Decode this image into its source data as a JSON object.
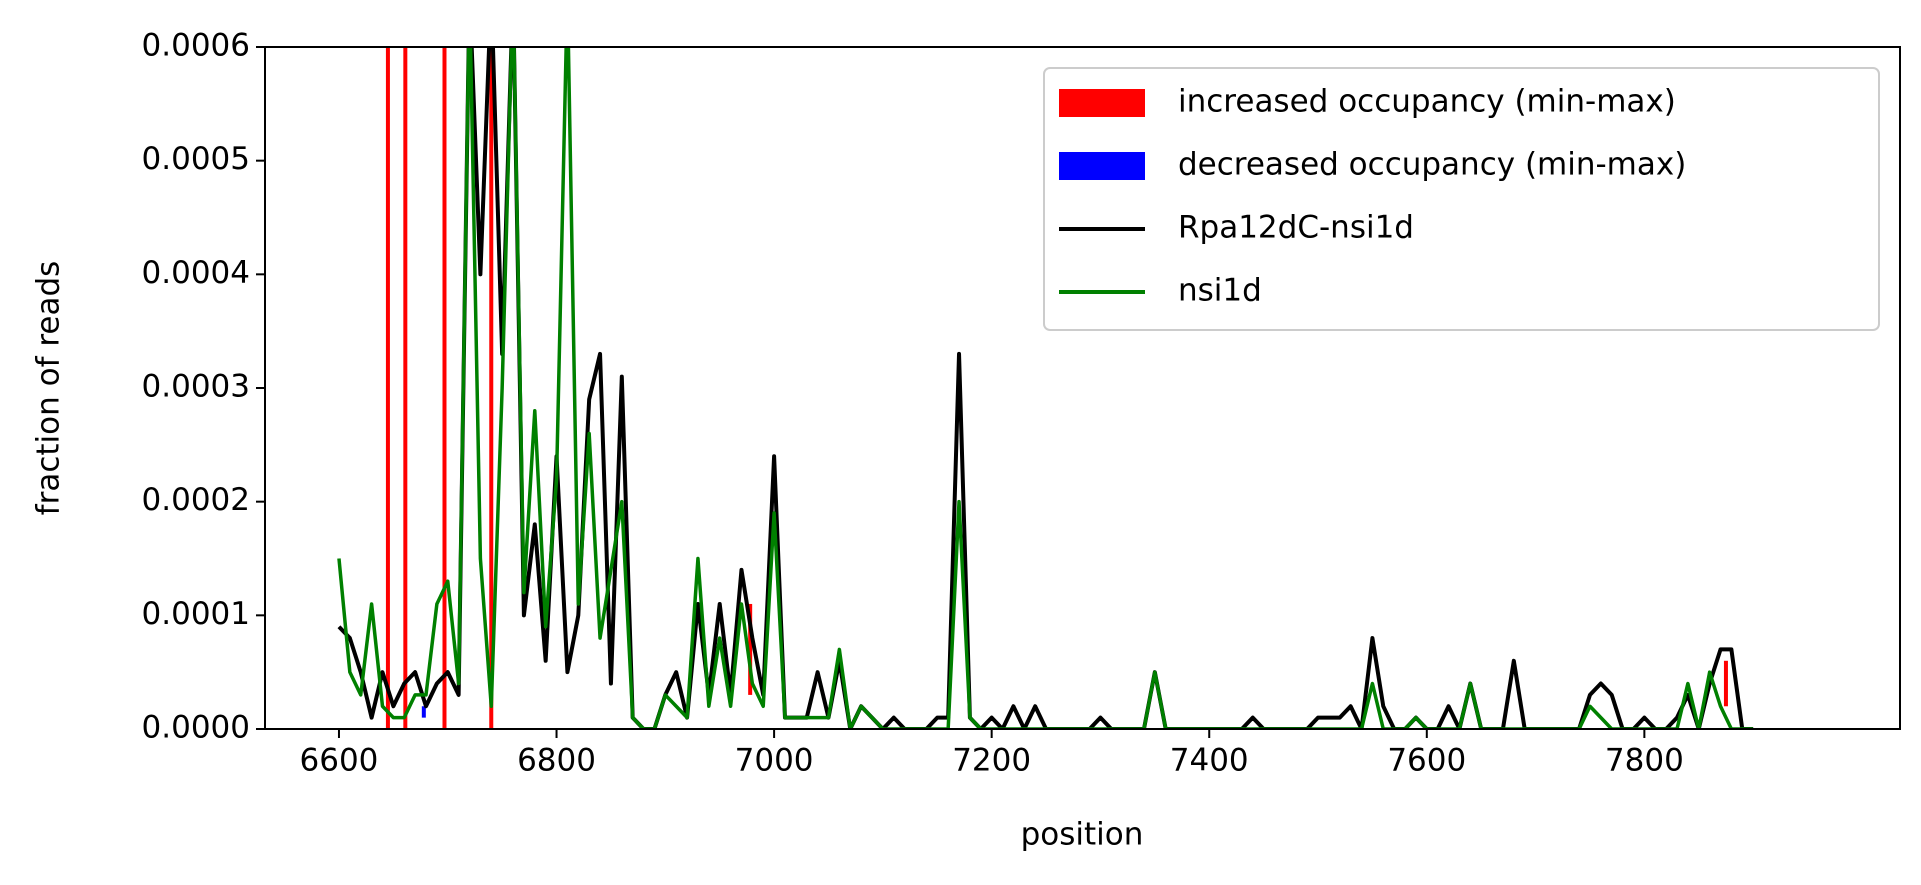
{
  "chart_data": {
    "type": "line",
    "xlabel": "position",
    "ylabel": "fraction of reads",
    "xlim": [
      6532,
      8035
    ],
    "ylim": [
      0,
      0.0006
    ],
    "xticks": [
      6600,
      6800,
      7000,
      7200,
      7400,
      7600,
      7800
    ],
    "yticks": [
      {
        "value": 0,
        "label": "0.0000"
      },
      {
        "value": 0.0001,
        "label": "0.0001"
      },
      {
        "value": 0.0002,
        "label": "0.0002"
      },
      {
        "value": 0.0003,
        "label": "0.0003"
      },
      {
        "value": 0.0004,
        "label": "0.0004"
      },
      {
        "value": 0.0005,
        "label": "0.0005"
      },
      {
        "value": 0.0006,
        "label": "0.0006"
      }
    ],
    "legend": "upper right",
    "fills": [
      {
        "name": "increased occupancy (min-max)",
        "color": "#ff0000",
        "x": [
          6645,
          6661,
          6697,
          6740,
          6978,
          7875
        ],
        "low": [
          0,
          0,
          0,
          0,
          3e-05,
          2e-05
        ],
        "high": [
          0.0007,
          0.0007,
          0.0007,
          0.0007,
          0.00011,
          6e-05
        ]
      },
      {
        "name": "decreased occupancy (min-max)",
        "color": "#0000ff",
        "x": [
          6678
        ],
        "low": [
          1e-05
        ],
        "high": [
          2e-05
        ]
      }
    ],
    "x": [
      6600,
      6610,
      6620,
      6630,
      6640,
      6650,
      6660,
      6670,
      6680,
      6690,
      6700,
      6710,
      6720,
      6730,
      6740,
      6750,
      6760,
      6770,
      6780,
      6790,
      6800,
      6810,
      6820,
      6830,
      6840,
      6850,
      6860,
      6870,
      6880,
      6890,
      6900,
      6910,
      6920,
      6930,
      6940,
      6950,
      6960,
      6970,
      6980,
      6990,
      7000,
      7010,
      7020,
      7030,
      7040,
      7050,
      7060,
      7070,
      7080,
      7090,
      7100,
      7110,
      7120,
      7130,
      7140,
      7150,
      7160,
      7170,
      7180,
      7190,
      7200,
      7210,
      7220,
      7230,
      7240,
      7250,
      7260,
      7270,
      7280,
      7290,
      7300,
      7310,
      7320,
      7330,
      7340,
      7350,
      7360,
      7370,
      7380,
      7390,
      7400,
      7410,
      7420,
      7430,
      7440,
      7450,
      7460,
      7470,
      7480,
      7490,
      7500,
      7510,
      7520,
      7530,
      7540,
      7550,
      7560,
      7570,
      7580,
      7590,
      7600,
      7610,
      7620,
      7630,
      7640,
      7650,
      7660,
      7670,
      7680,
      7690,
      7700,
      7710,
      7720,
      7730,
      7740,
      7750,
      7760,
      7770,
      7780,
      7790,
      7800,
      7810,
      7820,
      7830,
      7840,
      7850,
      7860,
      7870,
      7880,
      7890,
      7900
    ],
    "series": [
      {
        "name": "Rpa12dC-nsi1d",
        "color": "#000000",
        "values": [
          9e-05,
          8e-05,
          5e-05,
          1e-05,
          5e-05,
          2e-05,
          4e-05,
          5e-05,
          2e-05,
          4e-05,
          5e-05,
          3e-05,
          0.00065,
          0.0004,
          0.00065,
          0.00033,
          0.00065,
          0.0001,
          0.00018,
          6e-05,
          0.00024,
          5e-05,
          0.0001,
          0.00029,
          0.00033,
          4e-05,
          0.00031,
          1e-05,
          0,
          0,
          3e-05,
          5e-05,
          1e-05,
          0.00011,
          3e-05,
          0.00011,
          3e-05,
          0.00014,
          8e-05,
          3e-05,
          0.00024,
          1e-05,
          1e-05,
          1e-05,
          5e-05,
          1e-05,
          6e-05,
          0,
          2e-05,
          1e-05,
          0,
          1e-05,
          0,
          0,
          0,
          1e-05,
          1e-05,
          0.00033,
          1e-05,
          0,
          1e-05,
          0,
          2e-05,
          0,
          2e-05,
          0,
          0,
          0,
          0,
          0,
          1e-05,
          0,
          0,
          0,
          0,
          5e-05,
          0,
          0,
          0,
          0,
          0,
          0,
          0,
          0,
          1e-05,
          0,
          0,
          0,
          0,
          0,
          1e-05,
          1e-05,
          1e-05,
          2e-05,
          0,
          8e-05,
          2e-05,
          0,
          0,
          1e-05,
          0,
          0,
          2e-05,
          0,
          4e-05,
          0,
          0,
          0,
          6e-05,
          0,
          0,
          0,
          0,
          0,
          0,
          3e-05,
          4e-05,
          3e-05,
          0,
          0,
          1e-05,
          0,
          0,
          1e-05,
          3e-05,
          0,
          4e-05,
          7e-05,
          7e-05,
          0,
          0
        ]
      },
      {
        "name": "nsi1d",
        "color": "#008000",
        "values": [
          0.00015,
          5e-05,
          3e-05,
          0.00011,
          2e-05,
          1e-05,
          1e-05,
          3e-05,
          3e-05,
          0.00011,
          0.00013,
          4e-05,
          0.00065,
          0.00015,
          2e-05,
          0.0003,
          0.00065,
          0.00012,
          0.00028,
          9e-05,
          0.00022,
          0.00065,
          0.00011,
          0.00026,
          8e-05,
          0.00014,
          0.0002,
          1e-05,
          0,
          0,
          3e-05,
          2e-05,
          1e-05,
          0.00015,
          2e-05,
          8e-05,
          2e-05,
          0.00011,
          4e-05,
          2e-05,
          0.00019,
          1e-05,
          1e-05,
          1e-05,
          1e-05,
          1e-05,
          7e-05,
          0,
          2e-05,
          1e-05,
          0,
          0,
          0,
          0,
          0,
          0,
          0,
          0.0002,
          1e-05,
          0,
          0,
          0,
          0,
          0,
          0,
          0,
          0,
          0,
          0,
          0,
          0,
          0,
          0,
          0,
          0,
          5e-05,
          0,
          0,
          0,
          0,
          0,
          0,
          0,
          0,
          0,
          0,
          0,
          0,
          0,
          0,
          0,
          0,
          0,
          0,
          0,
          4e-05,
          0,
          0,
          0,
          1e-05,
          0,
          0,
          0,
          0,
          4e-05,
          0,
          0,
          0,
          0,
          0,
          0,
          0,
          0,
          0,
          0,
          2e-05,
          1e-05,
          0,
          0,
          0,
          0,
          0,
          0,
          0,
          4e-05,
          0,
          5e-05,
          2e-05,
          0,
          0,
          0
        ]
      }
    ]
  }
}
